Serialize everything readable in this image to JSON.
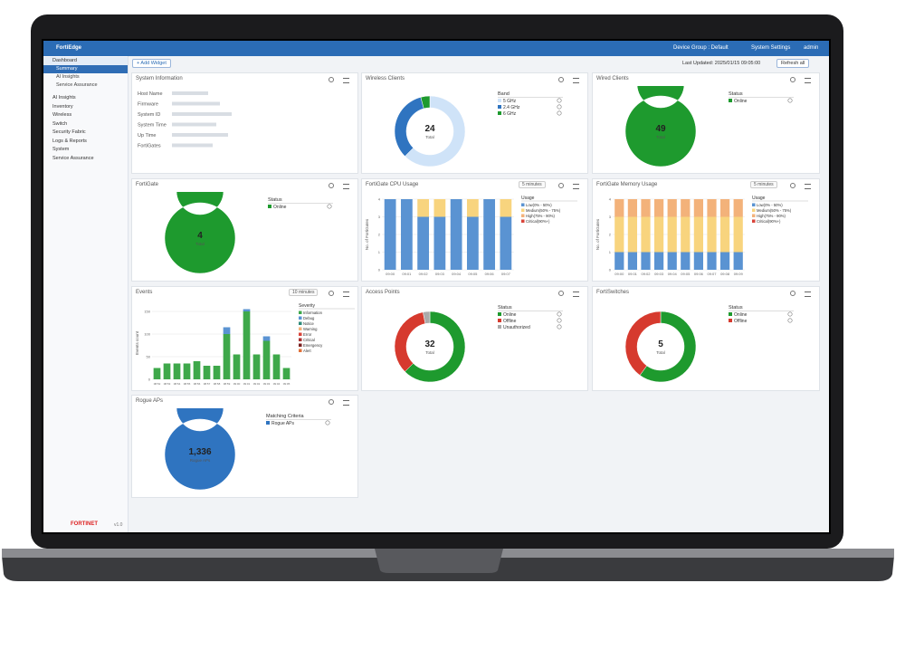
{
  "topbar": {
    "brand": "FortiEdge",
    "device_group": "Device Group : Default",
    "settings": "System Settings",
    "user": "admin"
  },
  "sidebar": {
    "items": [
      {
        "label": "Dashboard",
        "level": "header"
      },
      {
        "label": "Summary",
        "level": "selected"
      },
      {
        "label": "AI Insights",
        "level": "sub"
      },
      {
        "label": "Service Assurance",
        "level": "sub"
      },
      {
        "label": "AI Insights",
        "level": "top"
      },
      {
        "label": "Inventory",
        "level": "top"
      },
      {
        "label": "Wireless",
        "level": "top"
      },
      {
        "label": "Switch",
        "level": "top"
      },
      {
        "label": "Security Fabric",
        "level": "top"
      },
      {
        "label": "Logs & Reports",
        "level": "top"
      },
      {
        "label": "System",
        "level": "top"
      },
      {
        "label": "Service Assurance",
        "level": "top"
      }
    ],
    "footer_brand": "FORTINET",
    "version": "v1.0"
  },
  "toolbar": {
    "add_widget": "+ Add Widget",
    "last_updated": "Last Updated: 2025/01/15 09:05:00",
    "refresh": "Refresh all"
  },
  "widgets": [
    {
      "type": "info",
      "title": "System Information",
      "fields": [
        "Host Name",
        "Firmware",
        "System ID",
        "System Time",
        "Up Time",
        "FortiGates"
      ]
    },
    {
      "type": "donut",
      "title": "Wireless Clients",
      "total": 24,
      "center_label": "Total",
      "legend_title": "Band",
      "series": [
        {
          "name": "5 GHz",
          "color": "#cfe3f8",
          "value": 15
        },
        {
          "name": "2.4 GHz",
          "color": "#2f74c0",
          "value": 8
        },
        {
          "name": "6 GHz",
          "color": "#1e9a2e",
          "value": 1
        }
      ]
    },
    {
      "type": "donut",
      "title": "Wired Clients",
      "total": 49,
      "center_label": "Total",
      "legend_title": "Status",
      "series": [
        {
          "name": "Online",
          "color": "#1e9a2e",
          "value": 49
        }
      ]
    },
    {
      "type": "donut",
      "title": "FortiGate",
      "total": 4,
      "center_label": "Total",
      "legend_title": "Status",
      "series": [
        {
          "name": "Online",
          "color": "#1e9a2e",
          "value": 4
        }
      ]
    },
    {
      "type": "stacked-bar",
      "title": "FortiGate CPU Usage",
      "dropdown": "5 minutes",
      "y_label": "No. of FortiGates",
      "legend_title": "Usage",
      "categories": [
        "09:00",
        "09:01",
        "09:02",
        "09:03",
        "09:04",
        "09:05",
        "09:06",
        "09:07"
      ],
      "ylim": [
        0,
        4
      ],
      "yticks": [
        0,
        1,
        2,
        3,
        4
      ],
      "series": [
        {
          "name": "Low(0% - 50%)",
          "color": "#5a93d2",
          "values": [
            4,
            4,
            3,
            3,
            4,
            3,
            4,
            3
          ]
        },
        {
          "name": "Medium(50% - 75%)",
          "color": "#f8d47e",
          "values": [
            0,
            0,
            1,
            1,
            0,
            1,
            0,
            1
          ]
        },
        {
          "name": "High(75% - 90%)",
          "color": "#f3b27a",
          "values": [
            0,
            0,
            0,
            0,
            0,
            0,
            0,
            0
          ]
        },
        {
          "name": "Critical(90%+)",
          "color": "#d9443a",
          "values": [
            0,
            0,
            0,
            0,
            0,
            0,
            0,
            0
          ]
        }
      ]
    },
    {
      "type": "stacked-bar",
      "title": "FortiGate Memory Usage",
      "dropdown": "5 minutes",
      "y_label": "No. of FortiGates",
      "legend_title": "Usage",
      "categories": [
        "09:00",
        "09:01",
        "09:02",
        "09:03",
        "09:04",
        "09:05",
        "09:06",
        "09:07",
        "09:08",
        "09:09"
      ],
      "ylim": [
        0,
        4
      ],
      "yticks": [
        0,
        1,
        2,
        3,
        4
      ],
      "series": [
        {
          "name": "Low(0% - 50%)",
          "color": "#5a93d2",
          "values": [
            1,
            1,
            1,
            1,
            1,
            1,
            1,
            1,
            1,
            1
          ]
        },
        {
          "name": "Medium(50% - 75%)",
          "color": "#f8d47e",
          "values": [
            2,
            2,
            2,
            2,
            2,
            2,
            2,
            2,
            2,
            2
          ]
        },
        {
          "name": "High(75% - 90%)",
          "color": "#f3b27a",
          "values": [
            1,
            1,
            1,
            1,
            1,
            1,
            1,
            1,
            1,
            1
          ]
        },
        {
          "name": "Critical(90%+)",
          "color": "#d9443a",
          "values": [
            0,
            0,
            0,
            0,
            0,
            0,
            0,
            0,
            0,
            0
          ]
        }
      ]
    },
    {
      "type": "stacked-bar",
      "title": "Events",
      "dropdown": "10 minutes",
      "y_label": "Events count",
      "legend_title": "Severity",
      "categories": [
        "08:52",
        "08:53",
        "08:54",
        "08:55",
        "08:56",
        "08:57",
        "08:58",
        "08:59",
        "09:00",
        "09:01",
        "09:02",
        "09:03",
        "09:04",
        "09:05"
      ],
      "ylim": [
        0,
        160
      ],
      "yticks": [
        0,
        50,
        100,
        150
      ],
      "series": [
        {
          "name": "Information",
          "color": "#3ea84a",
          "values": [
            25,
            35,
            35,
            35,
            40,
            30,
            30,
            100,
            55,
            150,
            55,
            85,
            55,
            25
          ]
        },
        {
          "name": "Debug",
          "color": "#5a93d2",
          "values": [
            0,
            0,
            0,
            0,
            0,
            0,
            0,
            15,
            0,
            5,
            0,
            10,
            0,
            0
          ]
        },
        {
          "name": "Notice",
          "color": "#2d8a7a",
          "values": [
            0,
            0,
            0,
            0,
            0,
            0,
            0,
            0,
            0,
            0,
            0,
            0,
            0,
            0
          ]
        },
        {
          "name": "Warning",
          "color": "#f3b27a",
          "values": [
            0,
            0,
            0,
            0,
            0,
            0,
            0,
            0,
            0,
            0,
            0,
            0,
            0,
            0
          ]
        },
        {
          "name": "Error",
          "color": "#d9443a",
          "values": [
            0,
            0,
            0,
            0,
            0,
            0,
            0,
            0,
            0,
            0,
            0,
            0,
            0,
            0
          ]
        },
        {
          "name": "Critical",
          "color": "#a83232",
          "values": [
            0,
            0,
            0,
            0,
            0,
            0,
            0,
            0,
            0,
            0,
            0,
            0,
            0,
            0
          ]
        },
        {
          "name": "Emergency",
          "color": "#7a1f1f",
          "values": [
            0,
            0,
            0,
            0,
            0,
            0,
            0,
            0,
            0,
            0,
            0,
            0,
            0,
            0
          ]
        },
        {
          "name": "Alert",
          "color": "#e0723a",
          "values": [
            0,
            0,
            0,
            0,
            0,
            0,
            0,
            0,
            0,
            0,
            0,
            0,
            0,
            0
          ]
        }
      ]
    },
    {
      "type": "donut",
      "title": "Access Points",
      "total": 32,
      "center_label": "Total",
      "legend_title": "Status",
      "series": [
        {
          "name": "Online",
          "color": "#1e9a2e",
          "value": 20
        },
        {
          "name": "Offline",
          "color": "#d63a2e",
          "value": 11
        },
        {
          "name": "Unauthorized",
          "color": "#aaaaaa",
          "value": 1
        }
      ]
    },
    {
      "type": "donut",
      "title": "FortiSwitches",
      "total": 5,
      "center_label": "Total",
      "legend_title": "Status",
      "series": [
        {
          "name": "Online",
          "color": "#1e9a2e",
          "value": 3
        },
        {
          "name": "Offline",
          "color": "#d63a2e",
          "value": 2
        }
      ]
    },
    {
      "type": "donut",
      "title": "Rogue APs",
      "total": 1336,
      "total_label": "1,336",
      "center_label": "Rogue APs",
      "legend_title": "Matching Criteria",
      "series": [
        {
          "name": "Rogue APs",
          "color": "#2f74c0",
          "value": 1336
        }
      ]
    }
  ]
}
